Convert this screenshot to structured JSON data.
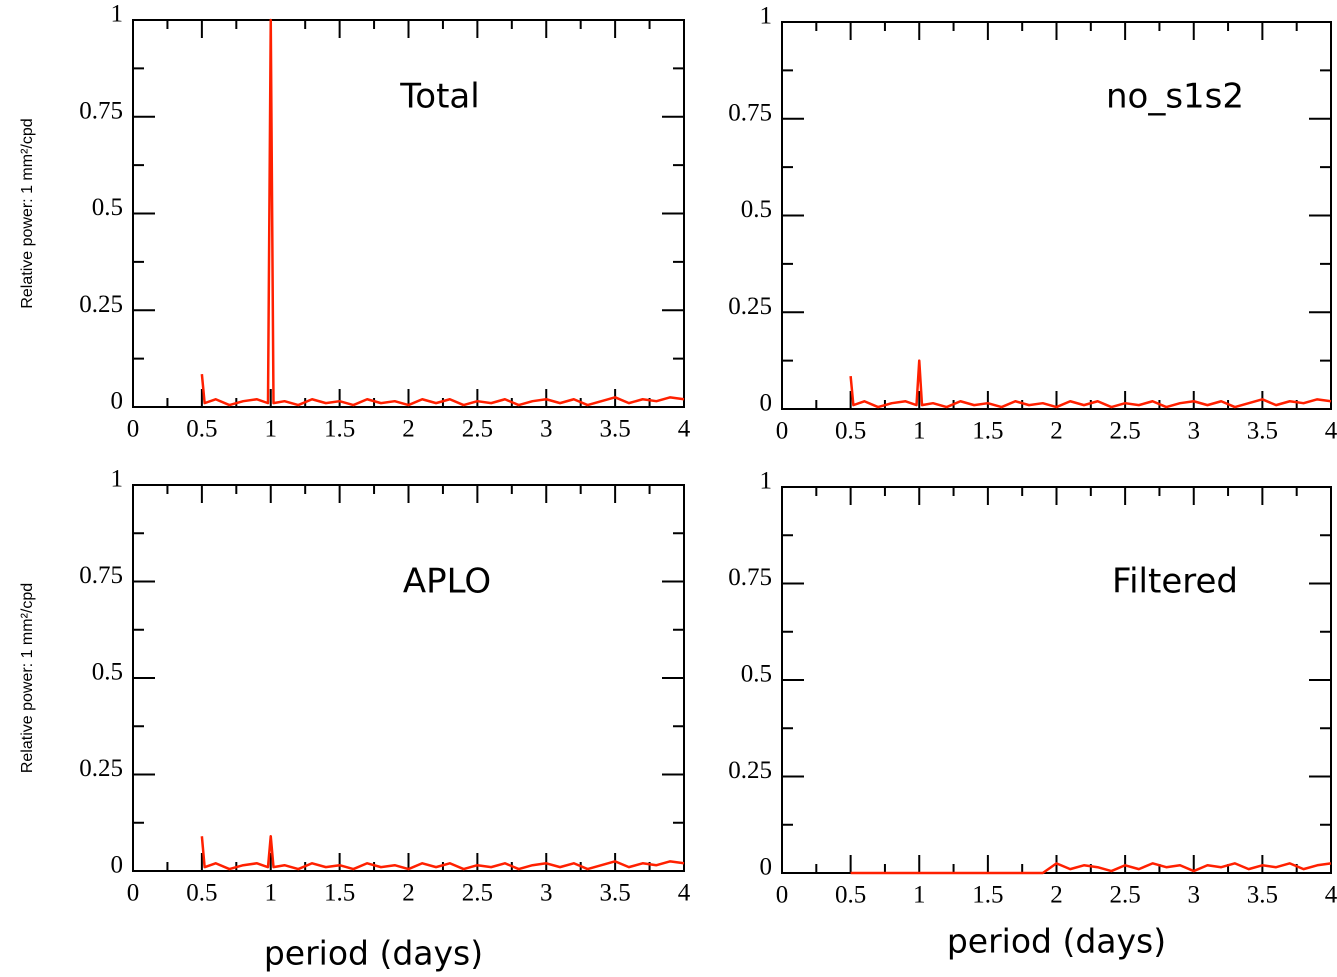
{
  "chart_data": [
    {
      "type": "line",
      "title": "Total",
      "ylabel": "Relative power: 1 mm²/cpd",
      "color": "#ff2000",
      "x": [
        0.5,
        0.52,
        0.6,
        0.7,
        0.8,
        0.9,
        0.98,
        1,
        1.02,
        1.1,
        1.2,
        1.3,
        1.4,
        1.5,
        1.6,
        1.7,
        1.8,
        1.9,
        2,
        2.1,
        2.2,
        2.3,
        2.4,
        2.5,
        2.6,
        2.7,
        2.8,
        2.9,
        3,
        3.1,
        3.2,
        3.3,
        3.4,
        3.5,
        3.6,
        3.7,
        3.8,
        3.9,
        4
      ],
      "values": [
        0.085,
        0.01,
        0.02,
        0.005,
        0.015,
        0.02,
        0.01,
        1,
        0.01,
        0.015,
        0.005,
        0.02,
        0.01,
        0.015,
        0.005,
        0.02,
        0.01,
        0.015,
        0.005,
        0.02,
        0.01,
        0.02,
        0.005,
        0.015,
        0.01,
        0.02,
        0.005,
        0.015,
        0.02,
        0.01,
        0.02,
        0.005,
        0.015,
        0.025,
        0.01,
        0.02,
        0.015,
        0.025,
        0.02
      ],
      "xlim": [
        0,
        4
      ],
      "xticks": [
        0,
        0.5,
        1,
        1.5,
        2,
        2.5,
        3,
        3.5,
        4
      ],
      "ylim": [
        0,
        1
      ],
      "yticks": [
        0,
        0.25,
        0.5,
        0.75,
        1
      ]
    },
    {
      "type": "line",
      "title": "no_s1s2",
      "color": "#ff2000",
      "x": [
        0.5,
        0.52,
        0.6,
        0.7,
        0.8,
        0.9,
        0.98,
        1,
        1.02,
        1.1,
        1.2,
        1.3,
        1.4,
        1.5,
        1.6,
        1.7,
        1.8,
        1.9,
        2,
        2.1,
        2.2,
        2.3,
        2.4,
        2.5,
        2.6,
        2.7,
        2.8,
        2.9,
        3,
        3.1,
        3.2,
        3.3,
        3.4,
        3.5,
        3.6,
        3.7,
        3.8,
        3.9,
        4
      ],
      "values": [
        0.085,
        0.01,
        0.02,
        0.005,
        0.015,
        0.02,
        0.01,
        0.125,
        0.01,
        0.015,
        0.005,
        0.02,
        0.01,
        0.015,
        0.005,
        0.02,
        0.01,
        0.015,
        0.005,
        0.02,
        0.01,
        0.02,
        0.005,
        0.015,
        0.01,
        0.02,
        0.005,
        0.015,
        0.02,
        0.01,
        0.02,
        0.005,
        0.015,
        0.025,
        0.01,
        0.02,
        0.015,
        0.025,
        0.02
      ],
      "xlim": [
        0,
        4
      ],
      "xticks": [
        0,
        0.5,
        1,
        1.5,
        2,
        2.5,
        3,
        3.5,
        4
      ],
      "ylim": [
        0,
        1
      ],
      "yticks": [
        0,
        0.25,
        0.5,
        0.75,
        1
      ]
    },
    {
      "type": "line",
      "title": "APLO",
      "ylabel": "Relative power: 1 mm²/cpd",
      "xlabel": "period (days)",
      "color": "#ff2000",
      "x": [
        0.5,
        0.52,
        0.6,
        0.7,
        0.8,
        0.9,
        0.98,
        1,
        1.02,
        1.1,
        1.2,
        1.3,
        1.4,
        1.5,
        1.6,
        1.7,
        1.8,
        1.9,
        2,
        2.1,
        2.2,
        2.3,
        2.4,
        2.5,
        2.6,
        2.7,
        2.8,
        2.9,
        3,
        3.1,
        3.2,
        3.3,
        3.4,
        3.5,
        3.6,
        3.7,
        3.8,
        3.9,
        4
      ],
      "values": [
        0.09,
        0.01,
        0.02,
        0.005,
        0.015,
        0.02,
        0.01,
        0.09,
        0.01,
        0.015,
        0.005,
        0.02,
        0.01,
        0.015,
        0.005,
        0.02,
        0.01,
        0.015,
        0.005,
        0.02,
        0.01,
        0.02,
        0.005,
        0.015,
        0.01,
        0.02,
        0.005,
        0.015,
        0.02,
        0.01,
        0.02,
        0.005,
        0.015,
        0.025,
        0.01,
        0.02,
        0.015,
        0.025,
        0.02
      ],
      "xlim": [
        0,
        4
      ],
      "xticks": [
        0,
        0.5,
        1,
        1.5,
        2,
        2.5,
        3,
        3.5,
        4
      ],
      "ylim": [
        0,
        1
      ],
      "yticks": [
        0,
        0.25,
        0.5,
        0.75,
        1
      ]
    },
    {
      "type": "line",
      "title": "Filtered",
      "xlabel": "period (days)",
      "color": "#ff2000",
      "x": [
        0.5,
        1,
        1.5,
        1.9,
        2,
        2.1,
        2.2,
        2.3,
        2.4,
        2.5,
        2.6,
        2.7,
        2.8,
        2.9,
        3,
        3.1,
        3.2,
        3.3,
        3.4,
        3.5,
        3.6,
        3.7,
        3.8,
        3.9,
        4
      ],
      "values": [
        0,
        0,
        0,
        0,
        0.025,
        0.01,
        0.02,
        0.015,
        0.005,
        0.02,
        0.01,
        0.025,
        0.015,
        0.02,
        0.005,
        0.02,
        0.015,
        0.025,
        0.01,
        0.02,
        0.015,
        0.025,
        0.01,
        0.02,
        0.025
      ],
      "xlim": [
        0,
        4
      ],
      "xticks": [
        0,
        0.5,
        1,
        1.5,
        2,
        2.5,
        3,
        3.5,
        4
      ],
      "ylim": [
        0,
        1
      ],
      "yticks": [
        0,
        0.25,
        0.5,
        0.75,
        1
      ]
    }
  ]
}
